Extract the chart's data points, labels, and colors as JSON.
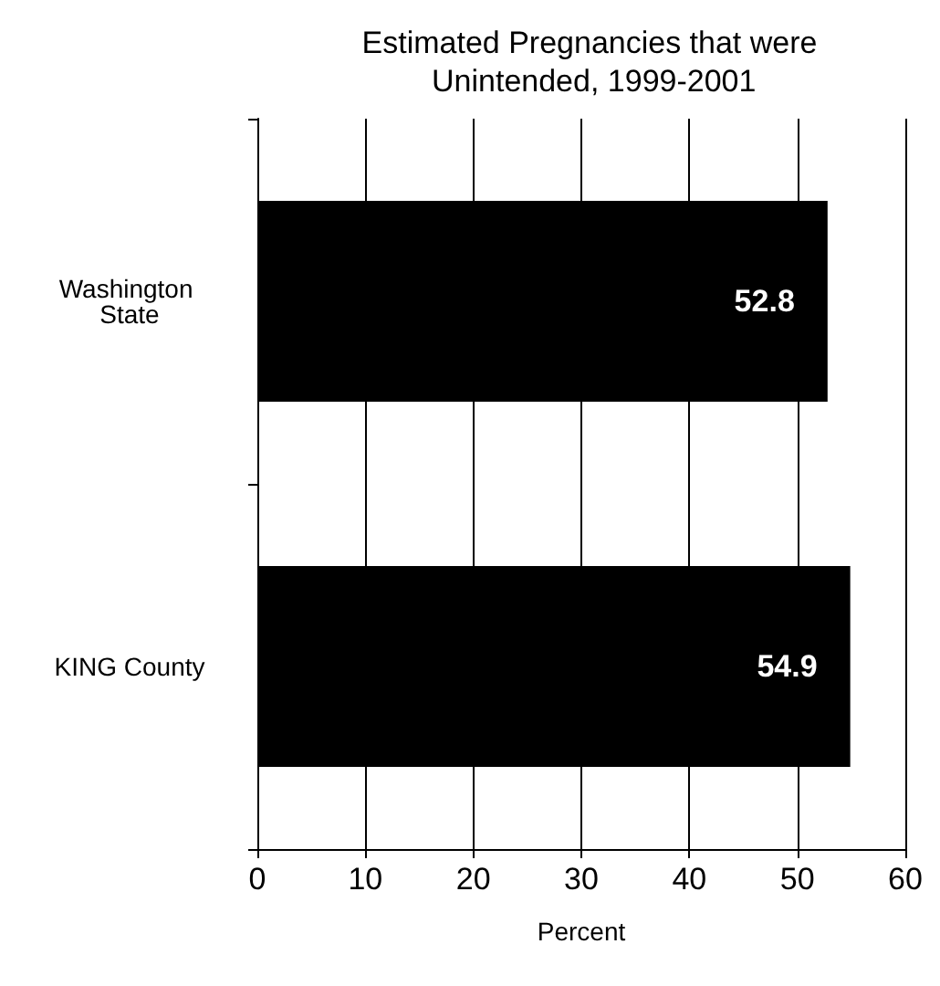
{
  "chart_data": {
    "type": "bar",
    "orientation": "horizontal",
    "title": "Estimated Pregnancies that were Unintended, 1999-2001",
    "categories": [
      "Washington State",
      "KING County"
    ],
    "values": [
      52.8,
      54.9
    ],
    "color": "#000000",
    "xlim": [
      0,
      60
    ],
    "xticks": [
      0,
      10,
      20,
      30,
      40,
      50,
      60
    ],
    "xlabel": "Percent",
    "grid": "x",
    "data_labels": true
  }
}
